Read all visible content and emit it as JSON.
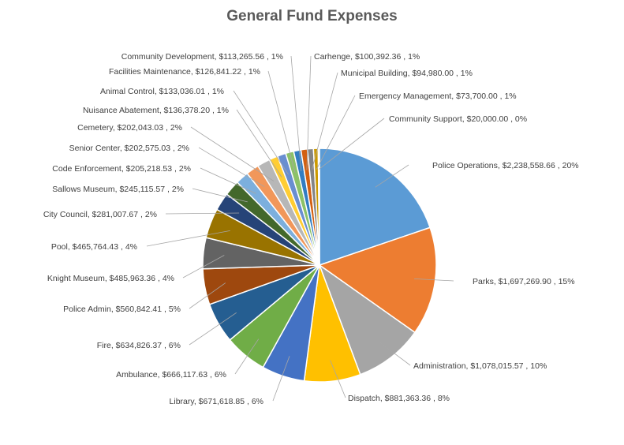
{
  "chart_data": {
    "type": "pie",
    "title": "General Fund Expenses",
    "slices": [
      {
        "name": "Police Operations",
        "value": 2238558.66,
        "value_label": "$2,238,558.66",
        "percent_label": "20%",
        "color": "#5B9BD5"
      },
      {
        "name": "Parks",
        "value": 1697269.9,
        "value_label": "$1,697,269.90",
        "percent_label": "15%",
        "color": "#ED7D31"
      },
      {
        "name": "Administration",
        "value": 1078015.57,
        "value_label": "$1,078,015.57",
        "percent_label": "10%",
        "color": "#A5A5A5"
      },
      {
        "name": "Dispatch",
        "value": 881363.36,
        "value_label": "$881,363.36",
        "percent_label": "8%",
        "color": "#FFC000"
      },
      {
        "name": "Library",
        "value": 671618.85,
        "value_label": "$671,618.85",
        "percent_label": "6%",
        "color": "#4472C4"
      },
      {
        "name": "Ambulance",
        "value": 666117.63,
        "value_label": "$666,117.63",
        "percent_label": "6%",
        "color": "#70AD47"
      },
      {
        "name": "Fire",
        "value": 634826.37,
        "value_label": "$634,826.37",
        "percent_label": "6%",
        "color": "#255E91"
      },
      {
        "name": "Police Admin",
        "value": 560842.41,
        "value_label": "$560,842.41",
        "percent_label": "5%",
        "color": "#9E480E"
      },
      {
        "name": "Knight Museum",
        "value": 485963.36,
        "value_label": "$485,963.36",
        "percent_label": "4%",
        "color": "#636363"
      },
      {
        "name": "Pool",
        "value": 465764.43,
        "value_label": "$465,764.43",
        "percent_label": "4%",
        "color": "#997300"
      },
      {
        "name": "City Council",
        "value": 281007.67,
        "value_label": "$281,007.67",
        "percent_label": "2%",
        "color": "#264478"
      },
      {
        "name": "Sallows Museum",
        "value": 245115.57,
        "value_label": "$245,115.57",
        "percent_label": "2%",
        "color": "#43682B"
      },
      {
        "name": "Code Enforcement",
        "value": 205218.53,
        "value_label": "$205,218.53",
        "percent_label": "2%",
        "color": "#7CAFDD"
      },
      {
        "name": "Senior Center",
        "value": 202575.03,
        "value_label": "$202,575.03",
        "percent_label": "2%",
        "color": "#F1975A"
      },
      {
        "name": "Cemetery",
        "value": 202043.03,
        "value_label": "$202,043.03",
        "percent_label": "2%",
        "color": "#B7B7B7"
      },
      {
        "name": "Nuisance Abatement",
        "value": 136378.2,
        "value_label": "$136,378.20",
        "percent_label": "1%",
        "color": "#FFCD33"
      },
      {
        "name": "Animal Control",
        "value": 133036.01,
        "value_label": "$133,036.01",
        "percent_label": "1%",
        "color": "#698ED0"
      },
      {
        "name": "Facilities Maintenance",
        "value": 126841.22,
        "value_label": "$126,841.22",
        "percent_label": "1%",
        "color": "#8CC168"
      },
      {
        "name": "Community Development",
        "value": 113265.56,
        "value_label": "$113,265.56",
        "percent_label": "1%",
        "color": "#327DC2"
      },
      {
        "name": "Carhenge",
        "value": 100392.36,
        "value_label": "$100,392.36",
        "percent_label": "1%",
        "color": "#D26012"
      },
      {
        "name": "Municipal Building",
        "value": 94980.0,
        "value_label": "$94,980.00",
        "percent_label": "1%",
        "color": "#848484"
      },
      {
        "name": "Emergency Management",
        "value": 73700.0,
        "value_label": "$73,700.00",
        "percent_label": "1%",
        "color": "#CC9A00"
      },
      {
        "name": "Community Support",
        "value": 20000.0,
        "value_label": "$20,000.00",
        "percent_label": "0%",
        "color": "#335AA1"
      }
    ],
    "legend": "none",
    "data_labels": "outside with leader lines"
  }
}
